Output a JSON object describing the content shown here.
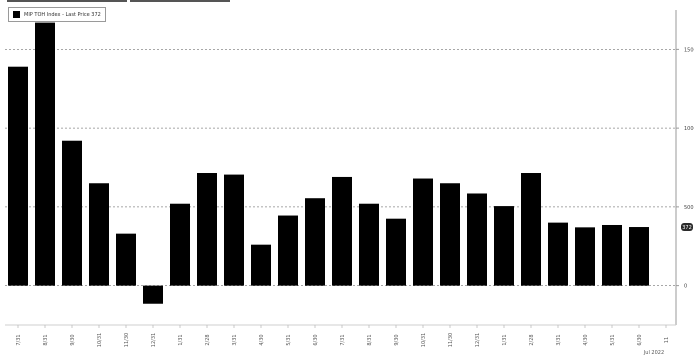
{
  "chart_data": {
    "type": "bar",
    "legend": {
      "label": "MIP TOH Index - Last Price 372",
      "position": "top-left"
    },
    "categories": [
      "7/31",
      "8/31",
      "9/30",
      "10/31",
      "11/30",
      "12/31",
      "1/31",
      "2/28",
      "3/31",
      "4/30",
      "5/31",
      "6/30",
      "7/31",
      "8/31",
      "9/30",
      "10/31",
      "11/30",
      "12/31",
      "1/31",
      "2/28",
      "3/31",
      "4/30",
      "5/31",
      "6/30"
    ],
    "extra_x_tick": "11",
    "x_sublabel": "Jul 2022",
    "values": [
      1390,
      1670,
      920,
      650,
      330,
      -115,
      520,
      715,
      705,
      260,
      445,
      555,
      690,
      520,
      425,
      680,
      650,
      585,
      505,
      715,
      400,
      370,
      385,
      372
    ],
    "ylim": [
      -250,
      1750
    ],
    "yticks": [
      0,
      500,
      1000,
      1500
    ],
    "ytick_labels": [
      "0",
      "500",
      "1000",
      "1500"
    ],
    "last_price_label": "372",
    "grid": true,
    "colors": {
      "bar": "#000000",
      "grid": "#8a8a8a",
      "axis": "#9a9a9a",
      "last_price_bg": "#2b2b2b"
    }
  }
}
